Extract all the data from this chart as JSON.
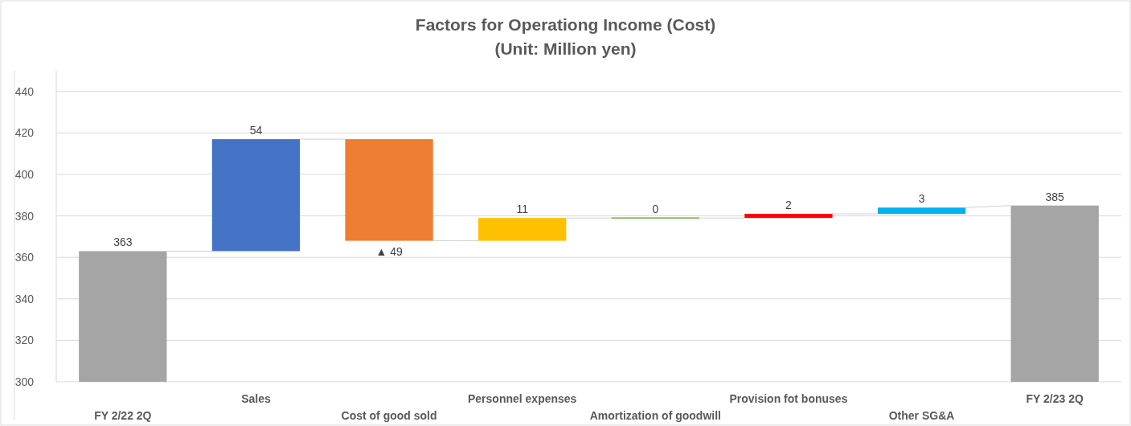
{
  "chart_data": {
    "type": "bar",
    "title": "Factors for Operationg Income (Cost)",
    "subtitle": "(Unit: Million yen)",
    "categories": [
      "FY 2/22 2Q",
      "Sales",
      "Cost of good sold",
      "Personnel expenses",
      "Amortization of goodwill",
      "Provision fot bonuses",
      "Other SG&A",
      "FY 2/23 2Q"
    ],
    "values": [
      363,
      54,
      -49,
      11,
      0,
      2,
      3,
      385
    ],
    "base": [
      0,
      363,
      417,
      368,
      379,
      379,
      381,
      0
    ],
    "colors": [
      "#a5a5a5",
      "#4472c4",
      "#ed7d31",
      "#ffc000",
      "#70ad47",
      "#ff0000",
      "#00b0f0",
      "#a5a5a5"
    ],
    "value_labels": [
      "363",
      "54",
      "▲ 49",
      "11",
      "0",
      "2",
      "3",
      "385"
    ],
    "ylim": [
      300,
      450
    ],
    "yticks": [
      300,
      320,
      340,
      360,
      380,
      400,
      420,
      440
    ],
    "grid": "y"
  }
}
